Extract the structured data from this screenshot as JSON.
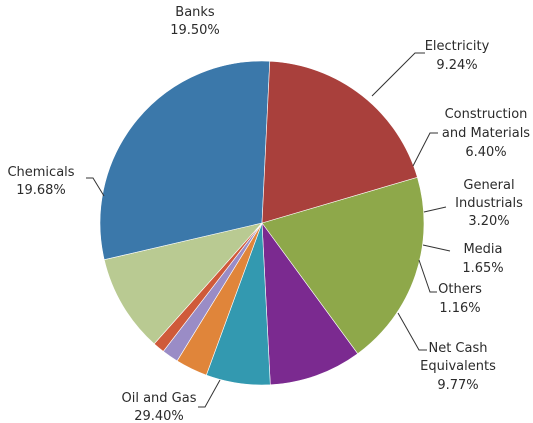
{
  "chart_data": {
    "type": "pie",
    "slices": [
      {
        "label": "Banks",
        "value": 19.5,
        "value_label": "19.50%",
        "color": "#8ea84a"
      },
      {
        "label": "Electricity",
        "value": 9.24,
        "value_label": "9.24%",
        "color": "#7b2a90"
      },
      {
        "label": "Construction and Materials",
        "value": 6.4,
        "value_label": "6.40%",
        "color": "#3399b0"
      },
      {
        "label": "General Industrials",
        "value": 3.2,
        "value_label": "3.20%",
        "color": "#e0853a"
      },
      {
        "label": "Media",
        "value": 1.65,
        "value_label": "1.65%",
        "color": "#9a8cc6"
      },
      {
        "label": "Others",
        "value": 1.16,
        "value_label": "1.16%",
        "color": "#cf5a3a"
      },
      {
        "label": "Net Cash Equivalents",
        "value": 9.77,
        "value_label": "9.77%",
        "color": "#b9ca92"
      },
      {
        "label": "Oil and Gas",
        "value": 29.4,
        "value_label": "29.40%",
        "color": "#3b78aa"
      },
      {
        "label": "Chemicals",
        "value": 19.68,
        "value_label": "19.68%",
        "color": "#a9403c"
      }
    ]
  }
}
